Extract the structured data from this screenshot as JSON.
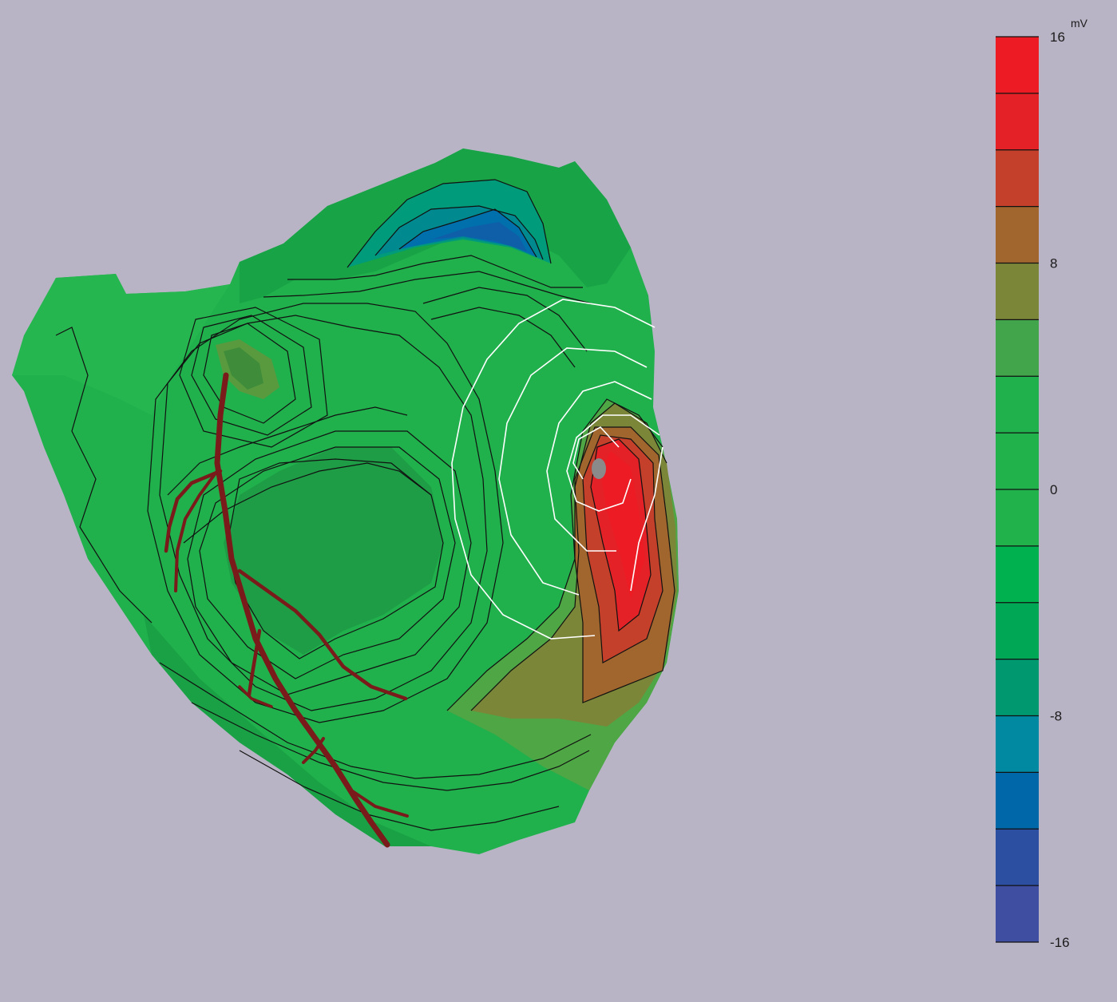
{
  "colorbar": {
    "unit": "mV",
    "max_label": "16",
    "labels": [
      {
        "text": "16",
        "value": 16
      },
      {
        "text": "8",
        "value": 8
      },
      {
        "text": "0",
        "value": 0
      },
      {
        "text": "-8",
        "value": -8
      },
      {
        "text": "-16",
        "value": -16
      }
    ],
    "range": [
      -16,
      16
    ],
    "bands": [
      "#ed1c24",
      "#e42127",
      "#c4402a",
      "#a0662e",
      "#7b8638",
      "#42a54b",
      "#20b04c",
      "#22b24c",
      "#22b24c",
      "#00b14f",
      "#00a856",
      "#00996f",
      "#0089a0",
      "#0067a8",
      "#2d4fa2",
      "#3f4ea0"
    ]
  },
  "map": {
    "surface_color": "#20b04c",
    "electrode_marker_color": "#8a8a8a",
    "vessel_color": "#7a1a1a",
    "contour_color": "#111111",
    "overlay_contour_color": "#ffffff"
  }
}
